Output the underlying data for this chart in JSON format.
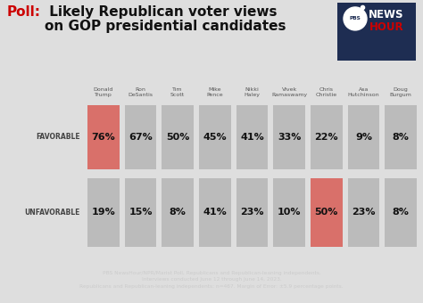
{
  "title_poll": "Poll:",
  "title_main": " Likely Republican voter views\non GOP presidential candidates",
  "candidates": [
    "Donald\nTrump",
    "Ron\nDeSantis",
    "Tim\nScott",
    "Mike\nPence",
    "Nikki\nHaley",
    "Vivek\nRamaswamy",
    "Chris\nChristie",
    "Asa\nHutchinson",
    "Doug\nBurgum"
  ],
  "favorable": [
    76,
    67,
    50,
    45,
    41,
    33,
    22,
    9,
    8
  ],
  "unfavorable": [
    19,
    15,
    8,
    41,
    23,
    10,
    50,
    23,
    8
  ],
  "favorable_highlight": [
    0
  ],
  "unfavorable_highlight": [
    6
  ],
  "highlight_color": "#d9706a",
  "bar_color": "#bbbbbb",
  "bg_color": "#dedede",
  "title_color_poll": "#cc0000",
  "title_color_main": "#111111",
  "label_row_favorable": "FAVORABLE",
  "label_row_unfavorable": "UNFAVORABLE",
  "footer_text": "PBS NewsHour/NPR/Marist Poll, Republicans and Republican-leaning independents.\nInterviews conducted June 12 through June 14, 2023.\nRepublicans and Republican-leaning independents: n=467. Margin of Error: ±5.9 percentage points.",
  "footer_bg": "#1e2d52",
  "footer_text_color": "#cccccc",
  "pbs_box_bg": "#1e2d52",
  "pbs_red": "#cc0000"
}
